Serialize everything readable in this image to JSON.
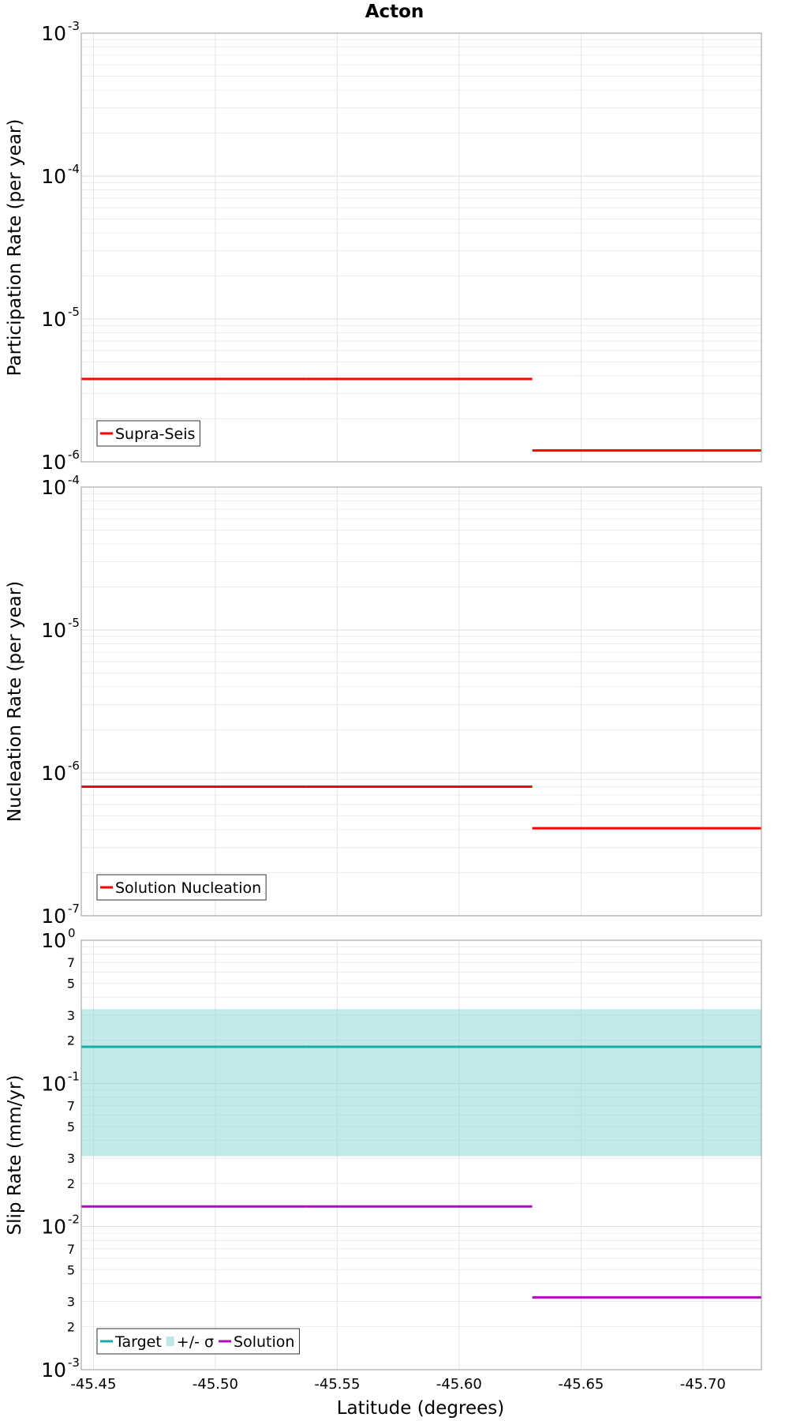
{
  "chart_data": {
    "type": "line",
    "title": "Acton",
    "xlabel": "Latitude (degrees)",
    "xlim": [
      -45.445,
      -45.724
    ],
    "xticks": [
      "-45.45",
      "-45.50",
      "-45.55",
      "-45.60",
      "-45.65",
      "-45.70"
    ],
    "xtick_values": [
      -45.45,
      -45.5,
      -45.55,
      -45.6,
      -45.65,
      -45.7
    ],
    "panels": [
      {
        "id": "participation",
        "ylabel": "Participation Rate (per year)",
        "yscale": "log",
        "ylim_exp": [
          -6,
          -3
        ],
        "ymajor_ticks": [
          {
            "base": "10",
            "exp": "-3"
          },
          {
            "base": "10",
            "exp": "-4"
          },
          {
            "base": "10",
            "exp": "-5"
          },
          {
            "base": "10",
            "exp": "-6"
          }
        ],
        "yminor_labels": [],
        "series": [
          {
            "name": "Supra-Seis",
            "color": "#ff0000",
            "segments": [
              {
                "x": [
                  -45.445,
                  -45.537
                ],
                "y": 3.8e-06
              },
              {
                "x": [
                  -45.537,
                  -45.63
                ],
                "y": 3.8e-06
              },
              {
                "x": [
                  -45.63,
                  -45.724
                ],
                "y": 1.2e-06
              }
            ]
          }
        ],
        "bands": [],
        "legend": [
          {
            "label": "Supra-Seis",
            "kind": "line",
            "color": "#ff0000"
          }
        ],
        "legend_position": "bottom-left"
      },
      {
        "id": "nucleation",
        "ylabel": "Nucleation Rate (per year)",
        "yscale": "log",
        "ylim_exp": [
          -7,
          -4
        ],
        "ymajor_ticks": [
          {
            "base": "10",
            "exp": "-4"
          },
          {
            "base": "10",
            "exp": "-5"
          },
          {
            "base": "10",
            "exp": "-6"
          },
          {
            "base": "10",
            "exp": "-7"
          }
        ],
        "yminor_labels": [],
        "series": [
          {
            "name": "Solution Nucleation",
            "color": "#ff0000",
            "segments": [
              {
                "x": [
                  -45.445,
                  -45.537
                ],
                "y": 8e-07
              },
              {
                "x": [
                  -45.537,
                  -45.63
                ],
                "y": 8e-07
              },
              {
                "x": [
                  -45.63,
                  -45.724
                ],
                "y": 4.1e-07
              }
            ]
          }
        ],
        "bands": [],
        "legend": [
          {
            "label": "Solution Nucleation",
            "kind": "line",
            "color": "#ff0000"
          }
        ],
        "legend_position": "bottom-left"
      },
      {
        "id": "slip",
        "ylabel": "Slip Rate (mm/yr)",
        "yscale": "log",
        "ylim_exp": [
          -3,
          0
        ],
        "ymajor_ticks": [
          {
            "base": "10",
            "exp": "0"
          },
          {
            "base": "10",
            "exp": "-1"
          },
          {
            "base": "10",
            "exp": "-2"
          },
          {
            "base": "10",
            "exp": "-3"
          }
        ],
        "yminor_labels": [
          {
            "value": 0.7,
            "label": "7"
          },
          {
            "value": 0.5,
            "label": "5"
          },
          {
            "value": 0.3,
            "label": "3"
          },
          {
            "value": 0.2,
            "label": "2"
          },
          {
            "value": 0.07,
            "label": "7"
          },
          {
            "value": 0.05,
            "label": "5"
          },
          {
            "value": 0.03,
            "label": "3"
          },
          {
            "value": 0.02,
            "label": "2"
          },
          {
            "value": 0.007,
            "label": "7"
          },
          {
            "value": 0.005,
            "label": "5"
          },
          {
            "value": 0.003,
            "label": "3"
          },
          {
            "value": 0.002,
            "label": "2"
          }
        ],
        "series": [
          {
            "name": "Target",
            "color": "#1aaaa8",
            "segments": [
              {
                "x": [
                  -45.445,
                  -45.537
                ],
                "y": 0.18
              },
              {
                "x": [
                  -45.537,
                  -45.63
                ],
                "y": 0.18
              },
              {
                "x": [
                  -45.63,
                  -45.724
                ],
                "y": 0.18
              }
            ]
          },
          {
            "name": "Solution",
            "color": "#aa10b5",
            "segments": [
              {
                "x": [
                  -45.445,
                  -45.537
                ],
                "y": 0.0138
              },
              {
                "x": [
                  -45.537,
                  -45.63
                ],
                "y": 0.0138
              },
              {
                "x": [
                  -45.63,
                  -45.724
                ],
                "y": 0.0032
              }
            ]
          }
        ],
        "bands": [
          {
            "name": "+/- σ",
            "color": "#8ed9d6",
            "opacity": 0.55,
            "x": [
              -45.445,
              -45.724
            ],
            "y": [
              0.031,
              0.33
            ]
          }
        ],
        "legend": [
          {
            "label": "Target",
            "kind": "line",
            "color": "#1aaaa8"
          },
          {
            "label": "+/- σ",
            "kind": "band",
            "color": "#bde8e6"
          },
          {
            "label": "Solution",
            "kind": "line",
            "color": "#aa10b5"
          }
        ],
        "legend_position": "bottom-left"
      }
    ]
  }
}
